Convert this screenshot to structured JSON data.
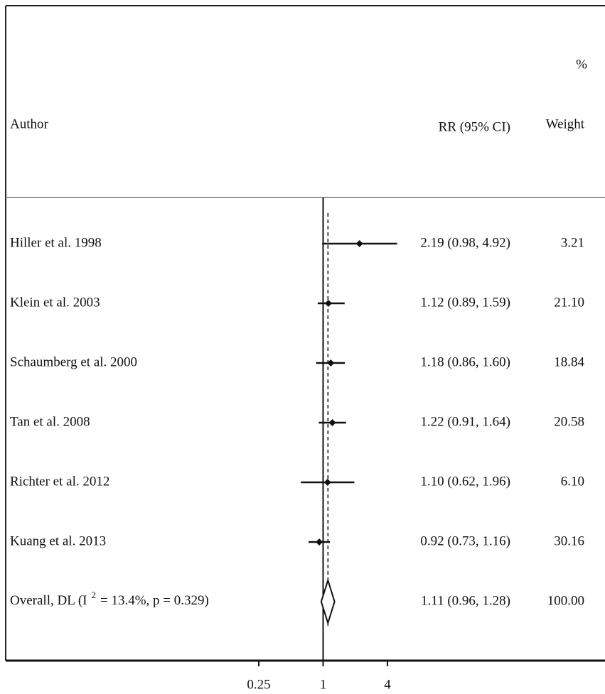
{
  "chart_data": {
    "type": "forest",
    "headers": {
      "author": "Author",
      "effect": "RR (95% CI)",
      "weight_top": "%",
      "weight": "Weight"
    },
    "log_scale": true,
    "xlim": [
      0.25,
      4
    ],
    "xticks": [
      0.25,
      1,
      4
    ],
    "reference": 1,
    "color": "#111111",
    "studies": [
      {
        "name": "Hiller et al. 1998",
        "rr": 2.19,
        "lo": 0.98,
        "hi": 4.92,
        "value_label": "2.19 (0.98, 4.92)",
        "weight": "3.21"
      },
      {
        "name": "Klein et al. 2003",
        "rr": 1.12,
        "lo": 0.89,
        "hi": 1.59,
        "value_label": "1.12 (0.89, 1.59)",
        "weight": "21.10"
      },
      {
        "name": "Schaumberg et al. 2000",
        "rr": 1.18,
        "lo": 0.86,
        "hi": 1.6,
        "value_label": "1.18 (0.86, 1.60)",
        "weight": "18.84"
      },
      {
        "name": "Tan et al. 2008",
        "rr": 1.22,
        "lo": 0.91,
        "hi": 1.64,
        "value_label": "1.22 (0.91, 1.64)",
        "weight": "20.58"
      },
      {
        "name": "Richter et al. 2012",
        "rr": 1.1,
        "lo": 0.62,
        "hi": 1.96,
        "value_label": "1.10 (0.62, 1.96)",
        "weight": "6.10"
      },
      {
        "name": "Kuang et al. 2013",
        "rr": 0.92,
        "lo": 0.73,
        "hi": 1.16,
        "value_label": "0.92 (0.73, 1.16)",
        "weight": "30.16"
      }
    ],
    "overall": {
      "name": "Overall, DL (I",
      "superscript": "2",
      "name_rest": "= 13.4%, p = 0.329)",
      "rr": 1.11,
      "lo": 0.96,
      "hi": 1.28,
      "value_label": "1.11 (0.96, 1.28)",
      "weight": "100.00"
    }
  }
}
